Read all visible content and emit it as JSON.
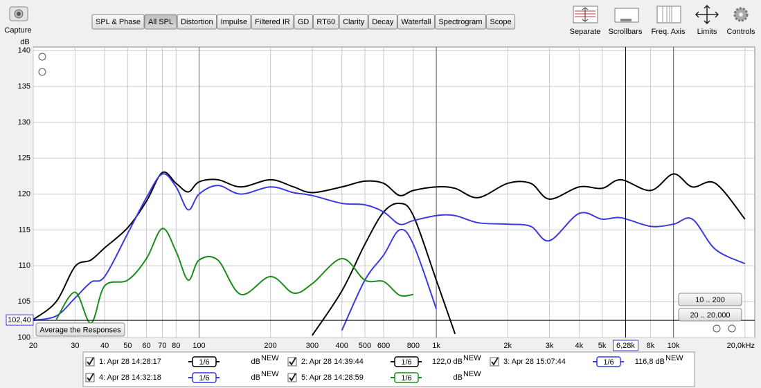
{
  "toolbar": {
    "capture": "Capture",
    "tabs": [
      "SPL & Phase",
      "All SPL",
      "Distortion",
      "Impulse",
      "Filtered IR",
      "GD",
      "RT60",
      "Clarity",
      "Decay",
      "Waterfall",
      "Spectrogram",
      "Scope"
    ],
    "active_tab": 1,
    "tools": [
      "Separate",
      "Scrollbars",
      "Freq. Axis",
      "Limits",
      "Controls"
    ]
  },
  "plot_controls": {
    "range_buttons": [
      "10 .. 200",
      "20 .. 20.000"
    ],
    "average_button": "Average the Responses"
  },
  "chart_data": {
    "type": "line",
    "y_unit": "dB",
    "log_x": true,
    "grid": true,
    "xlim": [
      20,
      22000
    ],
    "ylim": [
      100,
      140.5
    ],
    "yticks": [
      100,
      105,
      110,
      115,
      120,
      125,
      130,
      135,
      140
    ],
    "xticks": [
      20,
      30,
      40,
      50,
      60,
      70,
      80,
      100,
      200,
      300,
      400,
      500,
      600,
      800,
      {
        "value": 1000,
        "label": "1k"
      },
      {
        "value": 2000,
        "label": "2k"
      },
      {
        "value": 3000,
        "label": "3k"
      },
      {
        "value": 4000,
        "label": "4k"
      },
      {
        "value": 5000,
        "label": "5k"
      },
      {
        "value": 8000,
        "label": "8k"
      },
      {
        "value": 10000,
        "label": "10k"
      },
      {
        "value": 20000,
        "label": "20,0kHz"
      }
    ],
    "cursor": {
      "x": {
        "value": 6280,
        "label": "6,28k"
      },
      "y": {
        "value": 102.4,
        "label": "102,40"
      }
    },
    "x": [
      20,
      25,
      30,
      35,
      40,
      50,
      60,
      70,
      80,
      90,
      100,
      120,
      150,
      200,
      250,
      300,
      400,
      500,
      600,
      700,
      800,
      1000,
      1200,
      1500,
      2000,
      2500,
      3000,
      4000,
      5000,
      6000,
      8000,
      10000,
      12000,
      15000,
      20000
    ],
    "series": [
      {
        "name": "1: Apr 28 14:28:17",
        "color": "#000000",
        "smoothing": "1/6",
        "reading": "dB",
        "tag": "NEW",
        "values": [
          102.5,
          105,
          109.9,
          110.8,
          112.5,
          115.3,
          119,
          123,
          121.5,
          120.3,
          121.7,
          122,
          121,
          122,
          121,
          120.2,
          121,
          121.8,
          121.5,
          119.8,
          120.5,
          121,
          120.8,
          119.5,
          121.5,
          121.5,
          119.3,
          121,
          120.8,
          122,
          120.5,
          122.8,
          121,
          121.5,
          116.5
        ]
      },
      {
        "name": "2: Apr 28 14:39:44",
        "color": "#000000",
        "smoothing": "1/6",
        "reading": "122,0 dB",
        "tag": "NEW",
        "values": [
          null,
          null,
          null,
          null,
          null,
          null,
          null,
          null,
          null,
          null,
          null,
          null,
          null,
          null,
          null,
          100.3,
          106.5,
          113,
          117.5,
          118.7,
          117,
          108,
          100.5,
          null,
          null,
          null,
          null,
          null,
          null,
          null,
          null,
          null,
          null,
          null,
          null
        ]
      },
      {
        "name": "3: Apr 28 15:07:44",
        "color": "#3a3ae0",
        "smoothing": "1/6",
        "reading": "116,8 dB",
        "tag": "NEW",
        "values": [
          102.4,
          103,
          105.5,
          107.7,
          108.5,
          114.5,
          119.5,
          122.8,
          121,
          117.8,
          120,
          121.2,
          120,
          121,
          120.2,
          119.8,
          118.7,
          118.5,
          117.5,
          115.8,
          116.3,
          117,
          117,
          116,
          115.8,
          115.5,
          113.5,
          117.3,
          116.5,
          116.7,
          115.5,
          115.8,
          116.5,
          112.3,
          110.3
        ]
      },
      {
        "name": "4: Apr 28 14:32:18",
        "color": "#3a3ae0",
        "smoothing": "1/6",
        "reading": "dB",
        "tag": "NEW",
        "values": [
          null,
          null,
          null,
          null,
          null,
          null,
          null,
          null,
          null,
          null,
          null,
          null,
          null,
          null,
          null,
          null,
          101,
          108,
          111.5,
          115,
          113,
          104,
          null,
          null,
          null,
          null,
          null,
          null,
          null,
          null,
          null,
          null,
          null,
          null,
          null
        ]
      },
      {
        "name": "5: Apr 28 14:28:59",
        "color": "#1a8c1a",
        "smoothing": "1/6",
        "reading": "dB",
        "tag": "NEW",
        "values": [
          null,
          102.5,
          106.3,
          102,
          107.2,
          108,
          111,
          115.2,
          112,
          108,
          110.8,
          110.8,
          106,
          108.5,
          106.2,
          107.5,
          111,
          108,
          107.8,
          105.9,
          106,
          null,
          null,
          null,
          null,
          null,
          null,
          null,
          null,
          null,
          null,
          null,
          null,
          null,
          null
        ]
      }
    ]
  }
}
